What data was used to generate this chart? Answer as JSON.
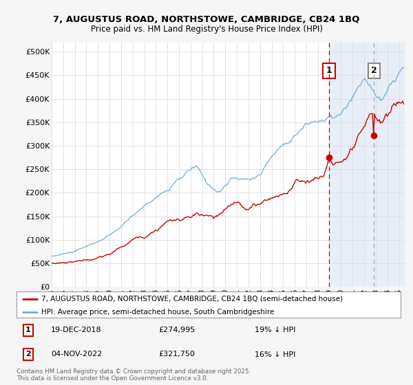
{
  "title1": "7, AUGUSTUS ROAD, NORTHSTOWE, CAMBRIDGE, CB24 1BQ",
  "title2": "Price paid vs. HM Land Registry's House Price Index (HPI)",
  "ylabel_ticks": [
    "£0",
    "£50K",
    "£100K",
    "£150K",
    "£200K",
    "£250K",
    "£300K",
    "£350K",
    "£400K",
    "£450K",
    "£500K"
  ],
  "ytick_values": [
    0,
    50000,
    100000,
    150000,
    200000,
    250000,
    300000,
    350000,
    400000,
    450000,
    500000
  ],
  "xlim_start": 1995.0,
  "xlim_end": 2025.5,
  "ylim_min": 0,
  "ylim_max": 520000,
  "hpi_color": "#6baed6",
  "price_color": "#cc0000",
  "marker1_date": 2018.96,
  "marker2_date": 2022.84,
  "marker1_price": 274995,
  "marker2_price": 321750,
  "legend1": "7, AUGUSTUS ROAD, NORTHSTOWE, CAMBRIDGE, CB24 1BQ (semi-detached house)",
  "legend2": "HPI: Average price, semi-detached house, South Cambridgeshire",
  "ann1_text_date": "19-DEC-2018",
  "ann1_text_price": "£274,995",
  "ann1_text_hpi": "19% ↓ HPI",
  "ann2_text_date": "04-NOV-2022",
  "ann2_text_price": "£321,750",
  "ann2_text_hpi": "16% ↓ HPI",
  "footer": "Contains HM Land Registry data © Crown copyright and database right 2025.\nThis data is licensed under the Open Government Licence v3.0.",
  "bg_color": "#f5f5f5",
  "plot_bg": "#ffffff",
  "highlight_bg": "#e8eef8"
}
